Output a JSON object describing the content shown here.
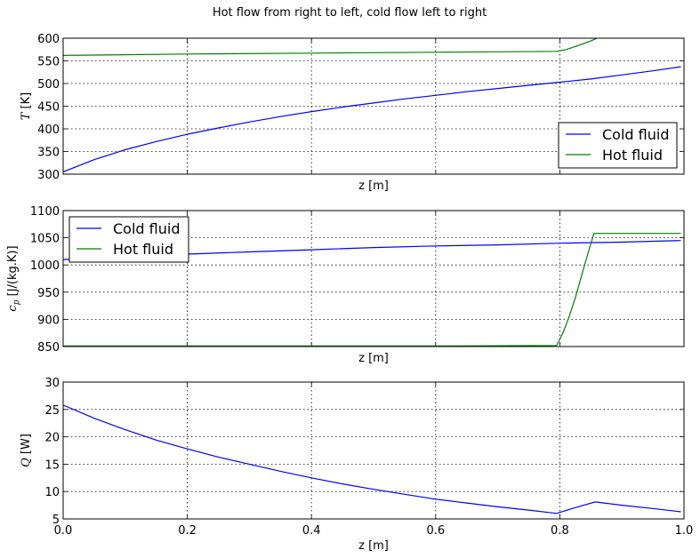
{
  "figure_title": "Hot flow from right to left, cold flow left to right",
  "colors": {
    "cold": "#0000ff",
    "hot": "#008000"
  },
  "chart_data": [
    {
      "type": "line",
      "xlabel": "z [m]",
      "ylabel": "T [K]",
      "xlim": [
        0,
        1
      ],
      "ylim": [
        300,
        600
      ],
      "yticks": [
        300,
        350,
        400,
        450,
        500,
        550,
        600
      ],
      "yticklabels": [
        "300",
        "350",
        "400",
        "450",
        "500",
        "550",
        "600"
      ],
      "show_xticklabels": false,
      "grid": true,
      "legend": "lower-right",
      "series": [
        {
          "name": "Cold fluid",
          "color": "cold",
          "x": [
            0.0,
            0.05,
            0.1,
            0.15,
            0.2,
            0.25,
            0.3,
            0.35,
            0.4,
            0.45,
            0.5,
            0.55,
            0.6,
            0.65,
            0.7,
            0.75,
            0.8,
            0.85,
            0.9,
            0.95,
            0.995
          ],
          "y": [
            305,
            332,
            354,
            372,
            388,
            402,
            415,
            427,
            438,
            448,
            457,
            466,
            474,
            482,
            489,
            496,
            503,
            510,
            519,
            528,
            537
          ]
        },
        {
          "name": "Hot fluid",
          "color": "hot",
          "x": [
            0.0,
            0.2,
            0.4,
            0.6,
            0.795,
            0.81,
            0.83,
            0.85,
            0.86
          ],
          "y": [
            562,
            565,
            567,
            569,
            571,
            575,
            584,
            594,
            600
          ]
        }
      ]
    },
    {
      "type": "line",
      "xlabel": "z [m]",
      "ylabel": "c_p [J/(kg.K)]",
      "xlim": [
        0,
        1
      ],
      "ylim": [
        850,
        1100
      ],
      "yticks": [
        850,
        900,
        950,
        1000,
        1050,
        1100
      ],
      "yticklabels": [
        "850",
        "900",
        "950",
        "1000",
        "1050",
        "1100"
      ],
      "show_xticklabels": false,
      "grid": true,
      "legend": "upper-left",
      "series": [
        {
          "name": "Cold fluid",
          "color": "cold",
          "x": [
            0.0,
            0.1,
            0.2,
            0.3,
            0.4,
            0.5,
            0.6,
            0.7,
            0.8,
            0.9,
            0.995
          ],
          "y": [
            1010,
            1015,
            1020,
            1024,
            1028,
            1032,
            1035,
            1037,
            1040,
            1042,
            1045
          ]
        },
        {
          "name": "Hot fluid",
          "color": "hot",
          "x": [
            0.0,
            0.2,
            0.4,
            0.6,
            0.795,
            0.805,
            0.815,
            0.825,
            0.835,
            0.845,
            0.855,
            0.9,
            0.995
          ],
          "y": [
            851,
            851,
            851,
            851,
            852,
            875,
            905,
            940,
            980,
            1020,
            1058,
            1058,
            1058
          ]
        }
      ]
    },
    {
      "type": "line",
      "xlabel": "z [m]",
      "ylabel": "Q [W]",
      "xlim": [
        0,
        1
      ],
      "ylim": [
        5,
        30
      ],
      "yticks": [
        5,
        10,
        15,
        20,
        25,
        30
      ],
      "yticklabels": [
        "5",
        "10",
        "15",
        "20",
        "25",
        "30"
      ],
      "xticks": [
        0,
        0.2,
        0.4,
        0.6,
        0.8,
        1.0
      ],
      "xticklabels": [
        "0.0",
        "0.2",
        "0.4",
        "0.6",
        "0.8",
        "1.0"
      ],
      "show_xticklabels": true,
      "grid": true,
      "legend": "none",
      "series": [
        {
          "name": "",
          "color": "cold",
          "x": [
            0.0,
            0.05,
            0.1,
            0.15,
            0.2,
            0.25,
            0.3,
            0.35,
            0.4,
            0.45,
            0.5,
            0.55,
            0.6,
            0.65,
            0.7,
            0.75,
            0.795,
            0.82,
            0.857,
            0.9,
            0.95,
            0.995
          ],
          "y": [
            25.8,
            23.4,
            21.3,
            19.4,
            17.8,
            16.3,
            15.0,
            13.7,
            12.5,
            11.4,
            10.4,
            9.5,
            8.6,
            7.9,
            7.2,
            6.6,
            6.0,
            6.9,
            8.1,
            7.5,
            6.9,
            6.3
          ]
        }
      ]
    }
  ]
}
